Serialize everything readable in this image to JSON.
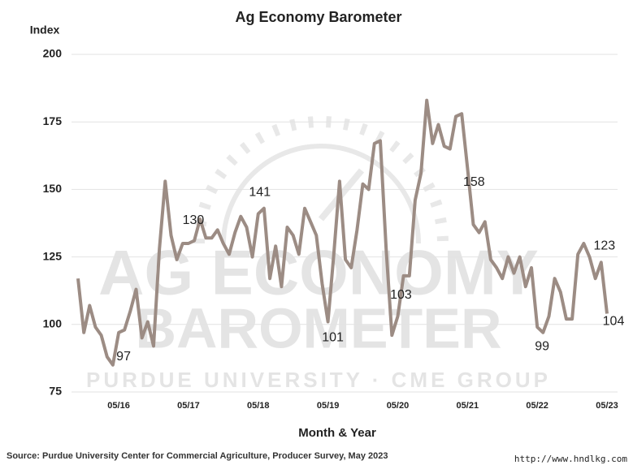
{
  "chart_data": {
    "type": "line",
    "title": "Ag Economy Barometer",
    "y_label": "Index",
    "x_label": "Month & Year",
    "source": "Source: Purdue University Center for Commercial Agriculture, Producer Survey, May 2023",
    "watermark": [
      "AG ECONOMY",
      "BAROMETER",
      "PURDUE UNIVERSITY · CME GROUP"
    ],
    "site": "http://www.hndlkg.com",
    "categories": [
      null,
      null,
      null,
      null,
      null,
      null,
      null,
      "05/16",
      null,
      null,
      null,
      null,
      null,
      null,
      null,
      null,
      null,
      null,
      null,
      "05/17",
      null,
      null,
      null,
      null,
      null,
      null,
      null,
      null,
      null,
      null,
      null,
      "05/18",
      null,
      null,
      null,
      null,
      null,
      null,
      null,
      null,
      null,
      null,
      null,
      "05/19",
      null,
      null,
      null,
      null,
      null,
      null,
      null,
      null,
      null,
      null,
      null,
      "05/20",
      null,
      null,
      null,
      null,
      null,
      null,
      null,
      null,
      null,
      null,
      null,
      "05/21",
      null,
      null,
      null,
      null,
      null,
      null,
      null,
      null,
      null,
      null,
      null,
      "05/22",
      null,
      null,
      null,
      null,
      null,
      null,
      null,
      null,
      null,
      null,
      null,
      "05/23"
    ],
    "series": [
      {
        "name": "Ag Economy Barometer",
        "color": "#9c8c84",
        "values": [
          117,
          97,
          107,
          99,
          96,
          88,
          85,
          97,
          98,
          105,
          113,
          95,
          101,
          92,
          128,
          153,
          133,
          124,
          130,
          130,
          131,
          139,
          132,
          132,
          135,
          130,
          126,
          134,
          140,
          136,
          125,
          141,
          143,
          117,
          129,
          114,
          136,
          133,
          126,
          143,
          138,
          133,
          115,
          101,
          126,
          153,
          124,
          121,
          135,
          152,
          150,
          167,
          168,
          128,
          96,
          103,
          118,
          118,
          146,
          156,
          183,
          167,
          174,
          166,
          165,
          177,
          178,
          158,
          137,
          134,
          138,
          124,
          121,
          117,
          125,
          119,
          125,
          114,
          121,
          99,
          97,
          103,
          117,
          112,
          102,
          102,
          126,
          130,
          125,
          117,
          123,
          104
        ]
      }
    ],
    "ylim": [
      75,
      200
    ],
    "yticks": [
      75,
      100,
      125,
      150,
      175,
      200
    ],
    "grid": true
  }
}
